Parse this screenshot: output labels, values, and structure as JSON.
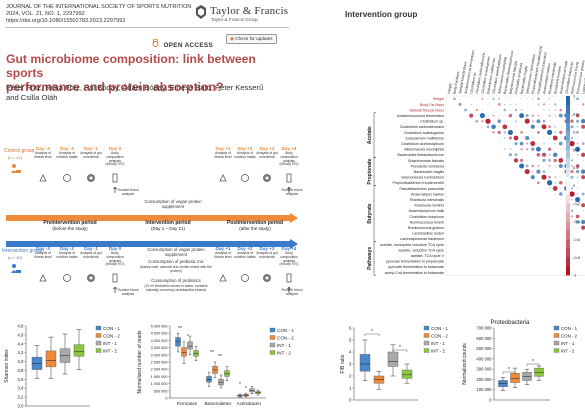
{
  "journal": {
    "name": "JOURNAL OF THE INTERNATIONAL SOCIETY OF SPORTS NUTRITION",
    "citation": "2024, VOL. 21, NO. 1, 2297992",
    "doi": "https://doi.org/10.1080/15502783.2023.2297992",
    "publisher": "Taylor & Francis",
    "publisher_sub": "Taylor & Francis Group",
    "open_access": "OPEN ACCESS",
    "check_updates": "Check for updates"
  },
  "article": {
    "title_line1": "Gut microbiome composition: link between sports",
    "title_line2": "performance and protein absorption?",
    "authors_line1": "Péter Fritz, Réka Fritz, Pál Bóday, Ádám Bóday, Emese Bató, Péter Kesserű",
    "authors_line2": "and Csilla Oláh"
  },
  "design": {
    "control_group": "Control group",
    "control_n": "(n = 12)",
    "intervention_group": "Intervention group",
    "intervention_n": "(n = 10)",
    "days_pre": [
      "Day -3",
      "Day -2",
      "Day -1",
      "Day 0"
    ],
    "days_post": [
      "Day +1",
      "Day +2",
      "Day +3",
      "Day +4"
    ],
    "pre_tasks": [
      "Analysis of fitness level",
      "Analysis of nutrition habits",
      "Analysis of gut microbiota",
      "Body composition analysis (InBody 970)"
    ],
    "post_tasks": [
      "Analysis of fitness level",
      "Analysis of nutrition habits",
      "Analysis of gut microbiota",
      "Body composition analysis (InBody 970)"
    ],
    "routine": "Routine blood analysis",
    "ctrl_consumption": "Consumption of vegan protein supplement",
    "periods": [
      {
        "name": "Preintervention period",
        "sub": "(before the study)"
      },
      {
        "name": "Intervention period",
        "sub": "(Day 1 – Day 21)"
      },
      {
        "name": "Postintervention period",
        "sub": "(after the study)"
      }
    ],
    "int_consumption1": "Consumption of vegan protein supplement",
    "int_consumption2": "Consumption of prebiotic mix",
    "int_consumption2_sub": "(barley malt, oatmeal and zeolite mixed with the protein)",
    "int_consumption3": "Consumption of probiotics",
    "int_consumption3_sub": "(10 ml Herbafirm solved in water, contains naturally occurring Lactobacillus strains)"
  },
  "heatmap": {
    "title": "Intervention group",
    "colorbar_ticks": [
      "1",
      "0.8",
      "0.6",
      "0.4",
      "0.2",
      "0",
      "-0.2",
      "-0.4",
      "-0.6",
      "-0.8",
      "-1"
    ],
    "row_labels": [
      "Weight",
      "Body Fat Mass",
      "Skeletal Muscle Mass",
      "Acidaminococcus fermentans",
      "Clostridium sp.",
      "Clostridium carboxidivorans",
      "Clostridium scatologenes",
      "Eubacterium multiformis",
      "Clostridium acetobutylicum",
      "Akkermansia muciniphila",
      "Bacteroides thetaiotaomicron",
      "Butyricimonas faecalis",
      "Prevotella ruminicola",
      "Bacteroides fragilis",
      "Selenomonas ruminantium",
      "Propionibacterium freudenreichii",
      "Faecalibacterium prausnitzii",
      "Anaerostipes hadrus",
      "Roseburia intestinalis",
      "Roseburia hominis",
      "Anaerobutyricum hallii",
      "Clostridium butyricum",
      "Ruminococcus bromii",
      "Ruminococcus gnavus",
      "Lactobacillus reuteri",
      "Lachnospiraceae bacterium",
      "acetate, incomplete reductive TCA cycle",
      "acetate, reductive TCA cycle",
      "acetate, TCA cycle V",
      "pyruvate fermentation to propanoate",
      "pyruvate fermentation to butanoate",
      "acetyl-CoA fermentation to butanoate"
    ],
    "group_labels": [
      "Acetate",
      "Propionate",
      "Butyrate",
      "Pathways"
    ]
  },
  "shannon": {
    "ylabel": "Shannon index",
    "yticks": [
      "4,8",
      "4,6",
      "4,4",
      "4,2",
      "4,0",
      "3,8",
      "3,6",
      "3,4",
      "3,2",
      "3,0"
    ],
    "legend": [
      "CON - 1",
      "CON - 2",
      "INT - 1",
      "INT - 2"
    ]
  },
  "reads": {
    "ylabel": "Normalized number of reads",
    "yticks": [
      "5 000 000",
      "4 500 000",
      "4 000 000",
      "3 500 000",
      "3 000 000",
      "2 500 000",
      "2 000 000",
      "1 500 000",
      "1 000 000",
      "500 000",
      "0"
    ],
    "categories": [
      "Firmicutes",
      "Bacteroidetes",
      "Actinobacter"
    ],
    "legend": [
      "CON - 1",
      "CON - 2",
      "INT - 1",
      "INT - 2"
    ],
    "star_marks": [
      "**",
      "*",
      "**",
      "**",
      "*",
      "*"
    ]
  },
  "fb": {
    "ylabel": "F/B ratio",
    "yticks": [
      "6",
      "5",
      "4",
      "3",
      "2",
      "1",
      "0"
    ],
    "legend": [
      "CON - 1",
      "CON - 2",
      "INT - 1",
      "INT - 2"
    ],
    "star_marks": [
      "*",
      "*"
    ]
  },
  "proteo": {
    "title": "Proteobacteria",
    "ylabel": "Normalized counts",
    "yticks": [
      "700 000",
      "600 000",
      "500 000",
      "400 000",
      "300 000",
      "200 000",
      "100 000",
      "0"
    ],
    "legend": [
      "CON - 1",
      "CON - 2",
      "INT - 1",
      "INT - 2"
    ],
    "star_marks": [
      "*",
      "*"
    ]
  },
  "colors": {
    "con1": "#4a86c8",
    "con2": "#ef8a3a",
    "int1": "#a8a8a8",
    "int2": "#8dc63f",
    "title_red": "#b54a4a",
    "control_orange": "#e58a3a",
    "intervention_blue": "#3a7ac9"
  },
  "chart_data": [
    {
      "type": "box",
      "ylabel": "Shannon index",
      "ylim": [
        3.0,
        4.8
      ],
      "categories": [
        "CON - 1",
        "CON - 2",
        "INT - 1",
        "INT - 2"
      ],
      "series": [
        {
          "name": "CON - 1",
          "min": 3.62,
          "q1": 3.82,
          "median": 3.95,
          "q3": 4.1,
          "max": 4.36
        },
        {
          "name": "CON - 2",
          "min": 3.62,
          "q1": 3.88,
          "median": 4.02,
          "q3": 4.24,
          "max": 4.55
        },
        {
          "name": "INT - 1",
          "min": 3.72,
          "q1": 3.98,
          "median": 4.13,
          "q3": 4.29,
          "max": 4.62
        },
        {
          "name": "INT - 2",
          "min": 3.82,
          "q1": 4.12,
          "median": 4.22,
          "q3": 4.38,
          "max": 4.72
        }
      ]
    },
    {
      "type": "box",
      "ylabel": "Normalized number of reads",
      "ylim": [
        0,
        5000000
      ],
      "categories": [
        "Firmicutes",
        "Bacteroidetes",
        "Actinobacter"
      ],
      "series": [
        {
          "name": "CON - 1",
          "boxes": [
            {
              "min": 3200000,
              "q1": 3600000,
              "median": 3900000,
              "q3": 4200000,
              "max": 4500000
            },
            {
              "min": 800000,
              "q1": 1100000,
              "median": 1300000,
              "q3": 1500000,
              "max": 1800000
            },
            {
              "min": 60000,
              "q1": 110000,
              "median": 160000,
              "q3": 210000,
              "max": 280000
            }
          ]
        },
        {
          "name": "CON - 2",
          "boxes": [
            {
              "min": 2400000,
              "q1": 2900000,
              "median": 3150000,
              "q3": 3500000,
              "max": 3900000
            },
            {
              "min": 1400000,
              "q1": 1700000,
              "median": 1950000,
              "q3": 2200000,
              "max": 2500000
            },
            {
              "min": 80000,
              "q1": 140000,
              "median": 200000,
              "q3": 260000,
              "max": 340000
            }
          ]
        },
        {
          "name": "INT - 1",
          "boxes": [
            {
              "min": 3000000,
              "q1": 3400000,
              "median": 3600000,
              "q3": 3900000,
              "max": 4300000
            },
            {
              "min": 700000,
              "q1": 900000,
              "median": 1100000,
              "q3": 1300000,
              "max": 1600000
            },
            {
              "min": 300000,
              "q1": 420000,
              "median": 520000,
              "q3": 650000,
              "max": 800000
            }
          ]
        },
        {
          "name": "INT - 2",
          "boxes": [
            {
              "min": 2600000,
              "q1": 2900000,
              "median": 3100000,
              "q3": 3300000,
              "max": 3600000
            },
            {
              "min": 1200000,
              "q1": 1500000,
              "median": 1700000,
              "q3": 1900000,
              "max": 2200000
            },
            {
              "min": 200000,
              "q1": 300000,
              "median": 380000,
              "q3": 450000,
              "max": 550000
            }
          ]
        }
      ]
    },
    {
      "type": "box",
      "ylabel": "F/B ratio",
      "ylim": [
        0,
        6
      ],
      "categories": [
        "CON - 1",
        "CON - 2",
        "INT - 1",
        "INT - 2"
      ],
      "series": [
        {
          "name": "CON - 1",
          "min": 1.6,
          "q1": 2.4,
          "median": 3.0,
          "q3": 3.8,
          "max": 5.0
        },
        {
          "name": "CON - 2",
          "min": 0.9,
          "q1": 1.4,
          "median": 1.7,
          "q3": 2.0,
          "max": 2.4
        },
        {
          "name": "INT - 1",
          "min": 2.0,
          "q1": 2.8,
          "median": 3.2,
          "q3": 4.0,
          "max": 4.6
        },
        {
          "name": "INT - 2",
          "min": 1.4,
          "q1": 1.8,
          "median": 2.1,
          "q3": 2.5,
          "max": 3.0
        }
      ]
    },
    {
      "type": "box",
      "title": "Proteobacteria",
      "ylabel": "Normalized counts",
      "ylim": [
        0,
        700000
      ],
      "categories": [
        "CON - 1",
        "CON - 2",
        "INT - 1",
        "INT - 2"
      ],
      "series": [
        {
          "name": "CON - 1",
          "min": 90000,
          "q1": 130000,
          "median": 160000,
          "q3": 190000,
          "max": 220000
        },
        {
          "name": "CON - 2",
          "min": 120000,
          "q1": 170000,
          "median": 210000,
          "q3": 260000,
          "max": 310000
        },
        {
          "name": "INT - 1",
          "min": 150000,
          "q1": 190000,
          "median": 230000,
          "q3": 270000,
          "max": 300000
        },
        {
          "name": "INT - 2",
          "min": 190000,
          "q1": 230000,
          "median": 270000,
          "q3": 310000,
          "max": 330000
        }
      ]
    }
  ]
}
